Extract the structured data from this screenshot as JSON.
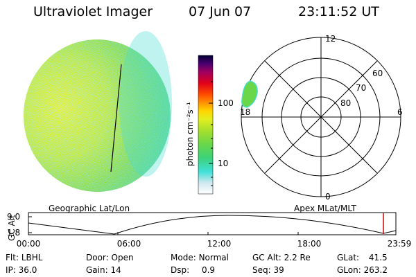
{
  "header": {
    "title": "Ultraviolet Imager",
    "date": "07 Jun 07",
    "time": "23:11:52 UT"
  },
  "colorbar": {
    "unit_label": "photon cm⁻²s⁻¹",
    "ticks": [
      "100",
      "10"
    ],
    "colors": [
      "#ffffff",
      "#cfe8ee",
      "#40e0d8",
      "#3cd27a",
      "#6ad64a",
      "#a8e02c",
      "#e4ee20",
      "#ffd400",
      "#ff9000",
      "#ff4a00",
      "#e0001a",
      "#a00060",
      "#4a0070",
      "#000033"
    ]
  },
  "polar_plot": {
    "mlt_labels": [
      "12",
      "18",
      "6",
      "0"
    ],
    "mlat_labels": [
      "60",
      "70",
      "80"
    ]
  },
  "section_labels": {
    "left": "Geographic Lat/Lon",
    "right": "Apex MLat/MLT"
  },
  "altitude_plot": {
    "ylabel": "GC Alt",
    "yticks": [
      "9.0",
      "1.8"
    ],
    "xticks": [
      "00:00",
      "06:00",
      "12:00",
      "18:00",
      "23:59"
    ]
  },
  "footer": {
    "flt_label": "Flt:",
    "flt_value": "LBHL",
    "ip_label": "IP:",
    "ip_value": "36.0",
    "door_label": "Door:",
    "door_value": "Open",
    "gain_label": "Gain:",
    "gain_value": "14",
    "mode_label": "Mode:",
    "mode_value": "Normal",
    "dsp_label": "Dsp:",
    "dsp_value": "0.9",
    "gcalt_label": "GC Alt:",
    "gcalt_value": "2.2 Re",
    "seq_label": "Seq:",
    "seq_value": "39",
    "glat_label": "GLat:",
    "glat_value": "41.5",
    "glon_label": "GLon:",
    "glon_value": "263.2"
  }
}
